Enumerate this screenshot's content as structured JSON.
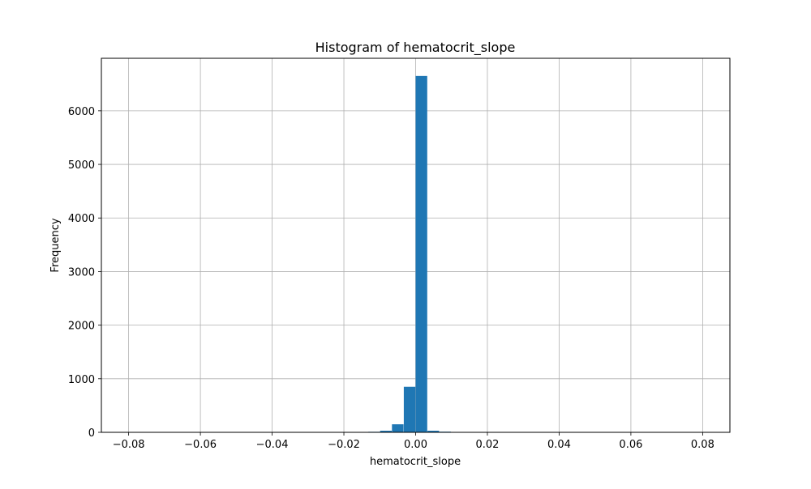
{
  "chart_data": {
    "type": "bar",
    "title": "Histogram of hematocrit_slope",
    "xlabel": "hematocrit_slope",
    "ylabel": "Frequency",
    "xlim": [
      -0.0876,
      0.0876
    ],
    "ylim": [
      0,
      6980
    ],
    "grid": true,
    "bin_width": 0.0033,
    "bins": [
      {
        "x0": -0.0132,
        "x1": -0.0099,
        "count": 10
      },
      {
        "x0": -0.0099,
        "x1": -0.0066,
        "count": 30
      },
      {
        "x0": -0.0066,
        "x1": -0.0033,
        "count": 150
      },
      {
        "x0": -0.0033,
        "x1": 0.0,
        "count": 850
      },
      {
        "x0": 0.0,
        "x1": 0.0033,
        "count": 6650
      },
      {
        "x0": 0.0033,
        "x1": 0.0066,
        "count": 30
      },
      {
        "x0": 0.0066,
        "x1": 0.0099,
        "count": 12
      }
    ],
    "xticks": [
      {
        "value": -0.08,
        "label": "−0.08"
      },
      {
        "value": -0.06,
        "label": "−0.06"
      },
      {
        "value": -0.04,
        "label": "−0.04"
      },
      {
        "value": -0.02,
        "label": "−0.02"
      },
      {
        "value": 0.0,
        "label": "0.00"
      },
      {
        "value": 0.02,
        "label": "0.02"
      },
      {
        "value": 0.04,
        "label": "0.04"
      },
      {
        "value": 0.06,
        "label": "0.06"
      },
      {
        "value": 0.08,
        "label": "0.08"
      }
    ],
    "yticks": [
      {
        "value": 0,
        "label": "0"
      },
      {
        "value": 1000,
        "label": "1000"
      },
      {
        "value": 2000,
        "label": "2000"
      },
      {
        "value": 3000,
        "label": "3000"
      },
      {
        "value": 4000,
        "label": "4000"
      },
      {
        "value": 5000,
        "label": "5000"
      },
      {
        "value": 6000,
        "label": "6000"
      }
    ],
    "colors": {
      "bar": "#1f77b4",
      "grid": "#b0b0b0",
      "axis": "#000000"
    }
  }
}
